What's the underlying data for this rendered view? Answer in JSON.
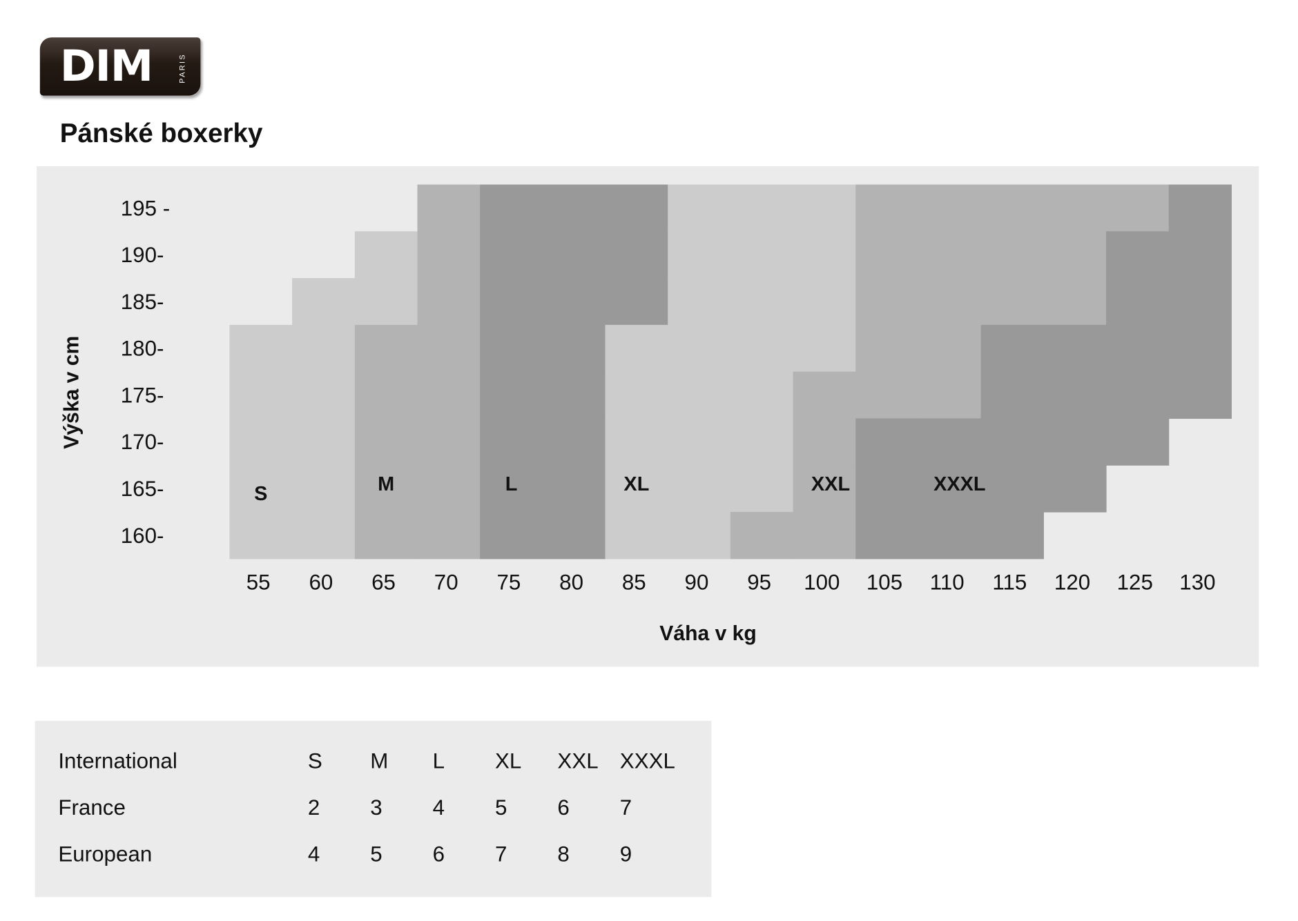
{
  "logo": {
    "text": "DIM",
    "subtext": "PARIS",
    "colors": {
      "background": "#241a14",
      "text": "#ffffff"
    }
  },
  "title": "Pánské boxerky",
  "chart_data": {
    "type": "heatmap",
    "title": "",
    "xlabel": "Váha v kg",
    "ylabel": "Výška v cm",
    "x_ticks": [
      55,
      60,
      65,
      70,
      75,
      80,
      85,
      90,
      95,
      100,
      105,
      110,
      115,
      120,
      125,
      130
    ],
    "x_tick_labels": [
      "55",
      "60",
      "65",
      "70",
      "75",
      "80",
      "85",
      "90",
      "95",
      "100",
      "105",
      "110",
      "115",
      "120",
      "125",
      "130"
    ],
    "y_ticks": [
      195,
      190,
      185,
      180,
      175,
      170,
      165,
      160
    ],
    "y_tick_labels": [
      "195 -",
      "190-",
      "185-",
      "180-",
      "175-",
      "170-",
      "165-",
      "160-"
    ],
    "xlim": [
      52.5,
      132.5
    ],
    "ylim": [
      157.5,
      197.5
    ],
    "grid": false,
    "sizes": [
      "S",
      "M",
      "L",
      "XL",
      "XXL",
      "XXXL"
    ],
    "size_colors": {
      "S": "#cccccc",
      "M": "#b3b3b3",
      "L": "#999999",
      "XL": "#cccccc",
      "XXL": "#b3b3b3",
      "XXXL": "#999999"
    },
    "background": "#ebebeb",
    "cells": {
      "195": [
        "",
        "",
        "",
        "M",
        "L",
        "L",
        "L",
        "XL",
        "XL",
        "XL",
        "XXL",
        "XXL",
        "XXL",
        "XXL",
        "XXL",
        "XXXL"
      ],
      "190": [
        "",
        "",
        "S",
        "M",
        "L",
        "L",
        "L",
        "XL",
        "XL",
        "XL",
        "XXL",
        "XXL",
        "XXL",
        "XXL",
        "XXXL",
        "XXXL"
      ],
      "185": [
        "",
        "S",
        "S",
        "M",
        "L",
        "L",
        "L",
        "XL",
        "XL",
        "XL",
        "XXL",
        "XXL",
        "XXL",
        "XXL",
        "XXXL",
        "XXXL"
      ],
      "180": [
        "S",
        "S",
        "M",
        "M",
        "L",
        "L",
        "XL",
        "XL",
        "XL",
        "XL",
        "XXL",
        "XXL",
        "XXXL",
        "XXXL",
        "XXXL",
        "XXXL"
      ],
      "175": [
        "S",
        "S",
        "M",
        "M",
        "L",
        "L",
        "XL",
        "XL",
        "XL",
        "XXL",
        "XXL",
        "XXL",
        "XXXL",
        "XXXL",
        "XXXL",
        "XXXL"
      ],
      "170": [
        "S",
        "S",
        "M",
        "M",
        "L",
        "L",
        "XL",
        "XL",
        "XL",
        "XXL",
        "XXXL",
        "XXXL",
        "XXXL",
        "XXXL",
        "XXXL",
        ""
      ],
      "165": [
        "S",
        "S",
        "M",
        "M",
        "L",
        "L",
        "XL",
        "XL",
        "XL",
        "XXL",
        "XXXL",
        "XXXL",
        "XXXL",
        "XXXL",
        "",
        ""
      ],
      "160": [
        "S",
        "S",
        "M",
        "M",
        "L",
        "L",
        "XL",
        "XL",
        "XXL",
        "XXL",
        "XXXL",
        "XXXL",
        "XXXL",
        "",
        "",
        ""
      ]
    }
  },
  "size_table": {
    "rows": [
      {
        "label": "International",
        "values": [
          "S",
          "M",
          "L",
          "XL",
          "XXL",
          "XXXL"
        ]
      },
      {
        "label": "France",
        "values": [
          "2",
          "3",
          "4",
          "5",
          "6",
          "7"
        ]
      },
      {
        "label": "European",
        "values": [
          "4",
          "5",
          "6",
          "7",
          "8",
          "9"
        ]
      }
    ]
  }
}
